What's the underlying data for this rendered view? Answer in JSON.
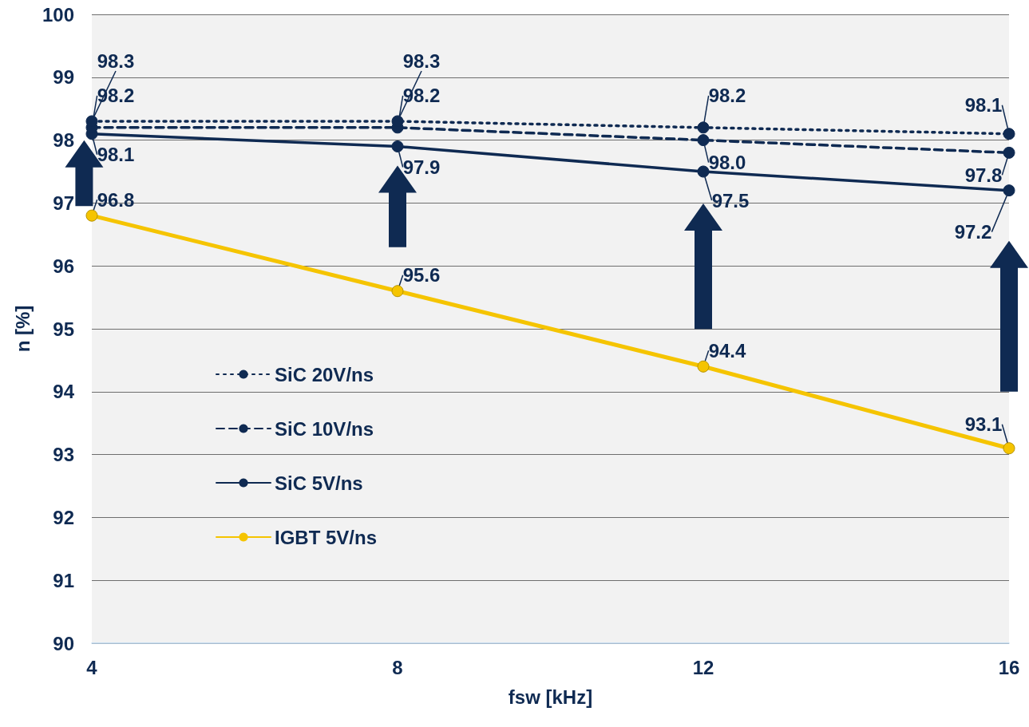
{
  "chart_data": {
    "type": "line",
    "xlabel": "fsw [kHz]",
    "ylabel": "n [%]",
    "x": [
      4,
      8,
      12,
      16
    ],
    "xlim": [
      4,
      16
    ],
    "xticks": [
      4,
      8,
      12,
      16
    ],
    "ylim": [
      90,
      100
    ],
    "yticks": [
      90,
      91,
      92,
      93,
      94,
      95,
      96,
      97,
      98,
      99,
      100
    ],
    "grid": "y",
    "legend": "left",
    "marker": "circle",
    "series": [
      {
        "name": "SiC 20V/ns",
        "color": "#0f2a52",
        "line_style": "dotted",
        "values": [
          98.3,
          98.3,
          98.2,
          98.1
        ],
        "value_labels": [
          "98.3",
          "98.3",
          "98.2",
          "98.1"
        ]
      },
      {
        "name": "SiC 10V/ns",
        "color": "#0f2a52",
        "line_style": "dashed",
        "values": [
          98.2,
          98.2,
          98.0,
          97.8
        ],
        "value_labels": [
          "98.2",
          "98.2",
          "98.0",
          "97.8"
        ]
      },
      {
        "name": "SiC 5V/ns",
        "color": "#0f2a52",
        "line_style": "solid",
        "values": [
          98.1,
          97.9,
          97.5,
          97.2
        ],
        "value_labels": [
          "98.1",
          "97.9",
          "97.5",
          "97.2"
        ]
      },
      {
        "name": "IGBT 5V/ns",
        "color": "#f5c400",
        "line_style": "solid",
        "values": [
          96.8,
          95.6,
          94.4,
          93.1
        ],
        "value_labels": [
          "96.8",
          "95.6",
          "94.4",
          "93.1"
        ]
      }
    ]
  }
}
